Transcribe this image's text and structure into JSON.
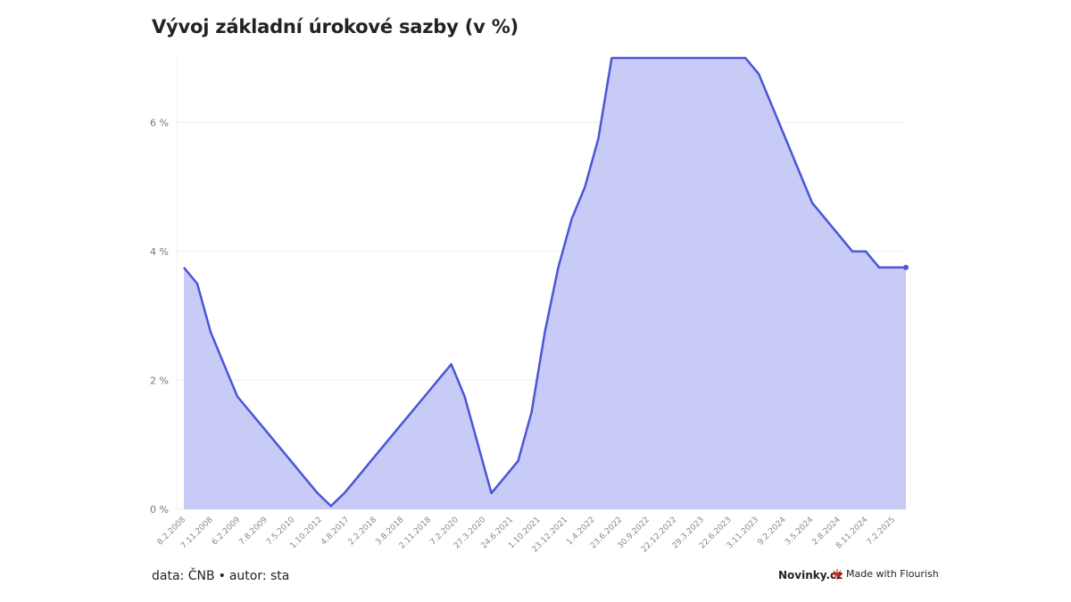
{
  "header": {
    "title": "Vývoj základní úrokové sazby (v %)"
  },
  "footer": {
    "data_label": "data: ČNB",
    "separator": "•",
    "author_label": "autor: sta",
    "brand": "Novinky.cz",
    "flourish": "Made with Flourish"
  },
  "colors": {
    "line": "#4a55d8",
    "area": "#c7cbf6",
    "grid": "#ececec"
  },
  "chart_data": {
    "type": "area",
    "title": "Vývoj základní úrokové sazby (v %)",
    "xlabel": "",
    "ylabel": "",
    "ylim": [
      0,
      7
    ],
    "yticks": [
      0,
      2,
      4,
      6
    ],
    "ytick_labels": [
      "0 %",
      "2 %",
      "4 %",
      "6 %"
    ],
    "grid": true,
    "legend": "none",
    "x_tick_labels": [
      "8.2.2008",
      "7.11.2008",
      "6.2.2009",
      "7.8.2009",
      "7.5.2010",
      "1.10.2012",
      "4.8.2017",
      "2.2.2018",
      "3.8.2018",
      "2.11.2018",
      "7.2.2020",
      "27.3.2020",
      "24.6.2021",
      "1.10.2021",
      "23.12.2021",
      "1.4.2022",
      "23.6.2022",
      "30.9.2022",
      "22.12.2022",
      "29.3.2023",
      "22.6.2023",
      "3.11.2023",
      "9.2.2024",
      "3.5.2024",
      "2.8.2024",
      "8.11.2024",
      "7.2.2025"
    ],
    "series": [
      {
        "values": [
          3.75,
          3.5,
          2.75,
          2.25,
          1.75,
          1.5,
          1.25,
          1.0,
          0.75,
          0.5,
          0.25,
          0.05,
          0.25,
          0.5,
          0.75,
          1.0,
          1.25,
          1.5,
          1.75,
          2.0,
          2.25,
          1.75,
          1.0,
          0.25,
          0.5,
          0.75,
          1.5,
          2.75,
          3.75,
          4.5,
          5.0,
          5.75,
          7.0,
          7.0,
          7.0,
          7.0,
          7.0,
          7.0,
          7.0,
          7.0,
          7.0,
          7.0,
          7.0,
          6.75,
          6.25,
          5.75,
          5.25,
          4.75,
          4.5,
          4.25,
          4.0,
          4.0,
          3.75,
          3.75,
          3.75
        ]
      }
    ]
  }
}
